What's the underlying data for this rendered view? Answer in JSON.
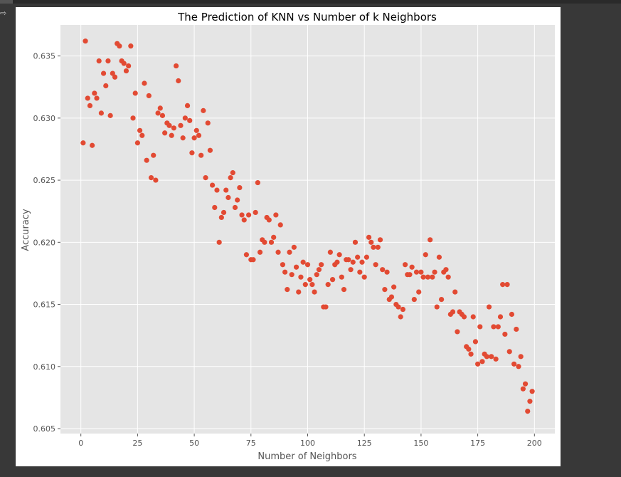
{
  "output_icon": "output-arrow-icon",
  "chart_data": {
    "type": "scatter",
    "title": "The Prediction of KNN vs Number of k Neighbors",
    "xlabel": "Number of Neighbors",
    "ylabel": "Accuracy",
    "xlim": [
      -9,
      209
    ],
    "ylim": [
      0.6046,
      0.6375
    ],
    "xticks": [
      0,
      25,
      50,
      75,
      100,
      125,
      150,
      175,
      200
    ],
    "yticks": [
      0.605,
      0.61,
      0.615,
      0.62,
      0.625,
      0.63,
      0.635
    ],
    "ytick_labels": [
      "0.605",
      "0.610",
      "0.615",
      "0.620",
      "0.625",
      "0.630",
      "0.635"
    ],
    "grid": true,
    "marker_color": "#E24A33",
    "plot_background": "#E5E5E5",
    "x": [
      1,
      2,
      3,
      4,
      5,
      6,
      7,
      8,
      9,
      10,
      11,
      12,
      13,
      14,
      15,
      16,
      17,
      18,
      19,
      20,
      21,
      22,
      23,
      24,
      25,
      26,
      27,
      28,
      29,
      30,
      31,
      32,
      33,
      34,
      35,
      36,
      37,
      38,
      39,
      40,
      41,
      42,
      43,
      44,
      45,
      46,
      47,
      48,
      49,
      50,
      51,
      52,
      53,
      54,
      55,
      56,
      57,
      58,
      59,
      60,
      61,
      62,
      63,
      64,
      65,
      66,
      67,
      68,
      69,
      70,
      71,
      72,
      73,
      74,
      75,
      76,
      77,
      78,
      79,
      80,
      81,
      82,
      83,
      84,
      85,
      86,
      87,
      88,
      89,
      90,
      91,
      92,
      93,
      94,
      95,
      96,
      97,
      98,
      99,
      100,
      101,
      102,
      103,
      104,
      105,
      106,
      107,
      108,
      109,
      110,
      111,
      112,
      113,
      114,
      115,
      116,
      117,
      118,
      119,
      120,
      121,
      122,
      123,
      124,
      125,
      126,
      127,
      128,
      129,
      130,
      131,
      132,
      133,
      134,
      135,
      136,
      137,
      138,
      139,
      140,
      141,
      142,
      143,
      144,
      145,
      146,
      147,
      148,
      149,
      150,
      151,
      152,
      153,
      154,
      155,
      156,
      157,
      158,
      159,
      160,
      161,
      162,
      163,
      164,
      165,
      166,
      167,
      168,
      169,
      170,
      171,
      172,
      173,
      174,
      175,
      176,
      177,
      178,
      179,
      180,
      181,
      182,
      183,
      184,
      185,
      186,
      187,
      188,
      189,
      190,
      191,
      192,
      193,
      194,
      195,
      196,
      197,
      198,
      199
    ],
    "y": [
      0.628,
      0.6362,
      0.6316,
      0.631,
      0.6278,
      0.632,
      0.6316,
      0.6346,
      0.6304,
      0.6336,
      0.6326,
      0.6346,
      0.6302,
      0.6336,
      0.6333,
      0.636,
      0.6358,
      0.6346,
      0.6344,
      0.6338,
      0.6342,
      0.6358,
      0.63,
      0.632,
      0.628,
      0.629,
      0.6286,
      0.6328,
      0.6266,
      0.6318,
      0.6252,
      0.627,
      0.625,
      0.6304,
      0.6308,
      0.6302,
      0.6288,
      0.6296,
      0.6294,
      0.6286,
      0.6292,
      0.6342,
      0.633,
      0.6294,
      0.6284,
      0.63,
      0.631,
      0.6298,
      0.6272,
      0.6284,
      0.629,
      0.6286,
      0.627,
      0.6306,
      0.6252,
      0.6296,
      0.6274,
      0.6246,
      0.6228,
      0.6242,
      0.62,
      0.622,
      0.6224,
      0.6242,
      0.6236,
      0.6252,
      0.6256,
      0.6228,
      0.6234,
      0.6244,
      0.6222,
      0.6218,
      0.619,
      0.6222,
      0.6186,
      0.6186,
      0.6224,
      0.6248,
      0.6192,
      0.6202,
      0.62,
      0.622,
      0.6218,
      0.62,
      0.6204,
      0.6222,
      0.6192,
      0.6214,
      0.6182,
      0.6176,
      0.6162,
      0.6192,
      0.6174,
      0.6196,
      0.618,
      0.616,
      0.6172,
      0.6184,
      0.6166,
      0.6182,
      0.617,
      0.6166,
      0.616,
      0.6174,
      0.6178,
      0.6182,
      0.6148,
      0.6148,
      0.6166,
      0.6192,
      0.617,
      0.6182,
      0.6184,
      0.619,
      0.6172,
      0.6162,
      0.6186,
      0.6186,
      0.6178,
      0.6184,
      0.62,
      0.6188,
      0.6176,
      0.6184,
      0.6172,
      0.6188,
      0.6204,
      0.62,
      0.6196,
      0.6182,
      0.6196,
      0.6202,
      0.6178,
      0.6162,
      0.6176,
      0.6154,
      0.6156,
      0.6164,
      0.615,
      0.6148,
      0.614,
      0.6146,
      0.6182,
      0.6174,
      0.6174,
      0.618,
      0.6154,
      0.6176,
      0.616,
      0.6176,
      0.6172,
      0.619,
      0.6172,
      0.6202,
      0.6172,
      0.6176,
      0.6148,
      0.6188,
      0.6154,
      0.6176,
      0.6178,
      0.6172,
      0.6142,
      0.6144,
      0.616,
      0.6128,
      0.6144,
      0.6142,
      0.614,
      0.6116,
      0.6114,
      0.611,
      0.614,
      0.612,
      0.6102,
      0.6132,
      0.6104,
      0.611,
      0.6108,
      0.6148,
      0.6108,
      0.6132,
      0.6106,
      0.6132,
      0.614,
      0.6166,
      0.6126,
      0.6166,
      0.6112,
      0.6142,
      0.6102,
      0.613,
      0.61,
      0.6108,
      0.6082,
      0.6086,
      0.6064,
      0.6072,
      0.608
    ]
  }
}
